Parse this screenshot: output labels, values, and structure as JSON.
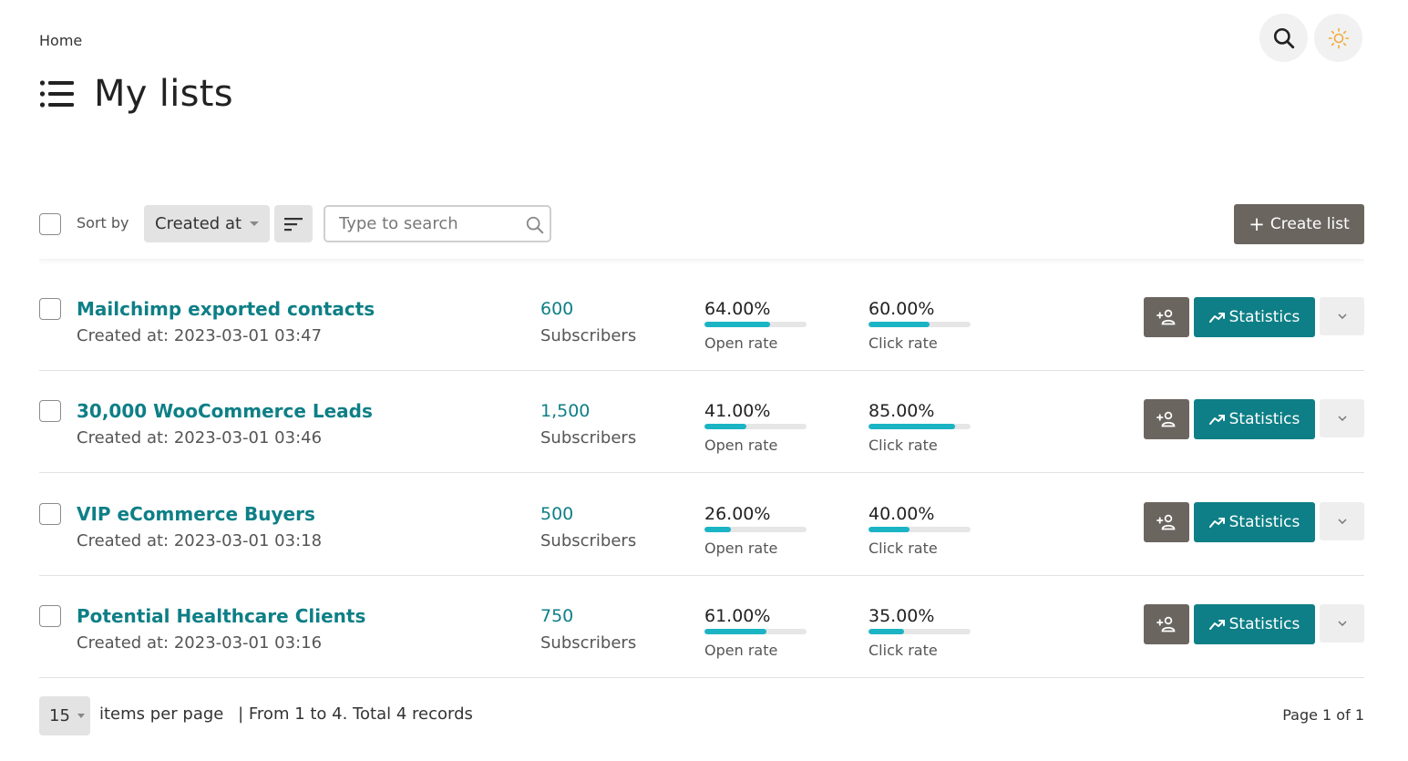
{
  "breadcrumb": "Home",
  "page": {
    "title": "My lists"
  },
  "toolbar": {
    "sort_label": "Sort by",
    "sort_value": "Created at",
    "search_placeholder": "Type to search",
    "create_label": "Create list"
  },
  "lists": [
    {
      "name": "Mailchimp exported contacts",
      "created": "Created at: 2023-03-01 03:47",
      "subscribers": "600",
      "subscribers_label": "Subscribers",
      "open_rate": "64.00%",
      "open_value": 64,
      "open_label": "Open rate",
      "click_rate": "60.00%",
      "click_value": 60,
      "click_label": "Click rate",
      "stats_label": "Statistics"
    },
    {
      "name": "30,000 WooCommerce Leads",
      "created": "Created at: 2023-03-01 03:46",
      "subscribers": "1,500",
      "subscribers_label": "Subscribers",
      "open_rate": "41.00%",
      "open_value": 41,
      "open_label": "Open rate",
      "click_rate": "85.00%",
      "click_value": 85,
      "click_label": "Click rate",
      "stats_label": "Statistics"
    },
    {
      "name": "VIP eCommerce Buyers",
      "created": "Created at: 2023-03-01 03:18",
      "subscribers": "500",
      "subscribers_label": "Subscribers",
      "open_rate": "26.00%",
      "open_value": 26,
      "open_label": "Open rate",
      "click_rate": "40.00%",
      "click_value": 40,
      "click_label": "Click rate",
      "stats_label": "Statistics"
    },
    {
      "name": "Potential Healthcare Clients",
      "created": "Created at: 2023-03-01 03:16",
      "subscribers": "750",
      "subscribers_label": "Subscribers",
      "open_rate": "61.00%",
      "open_value": 61,
      "open_label": "Open rate",
      "click_rate": "35.00%",
      "click_value": 35,
      "click_label": "Click rate",
      "stats_label": "Statistics"
    }
  ],
  "footer": {
    "per_page_value": "15",
    "per_page_label": "items per page",
    "records_text": "| From 1 to 4. Total 4 records",
    "page_info": "Page 1 of 1"
  },
  "colors": {
    "accent": "#0e7f86",
    "progress": "#1ab4c4",
    "dark_button": "#6b6560",
    "theme_icon": "#f2a93b"
  },
  "icons": [
    "search-icon",
    "sun-icon",
    "list-icon",
    "sort-lines-icon",
    "magnifier-icon",
    "plus-icon",
    "add-subscriber-icon",
    "trend-icon",
    "chevron-down-icon"
  ]
}
